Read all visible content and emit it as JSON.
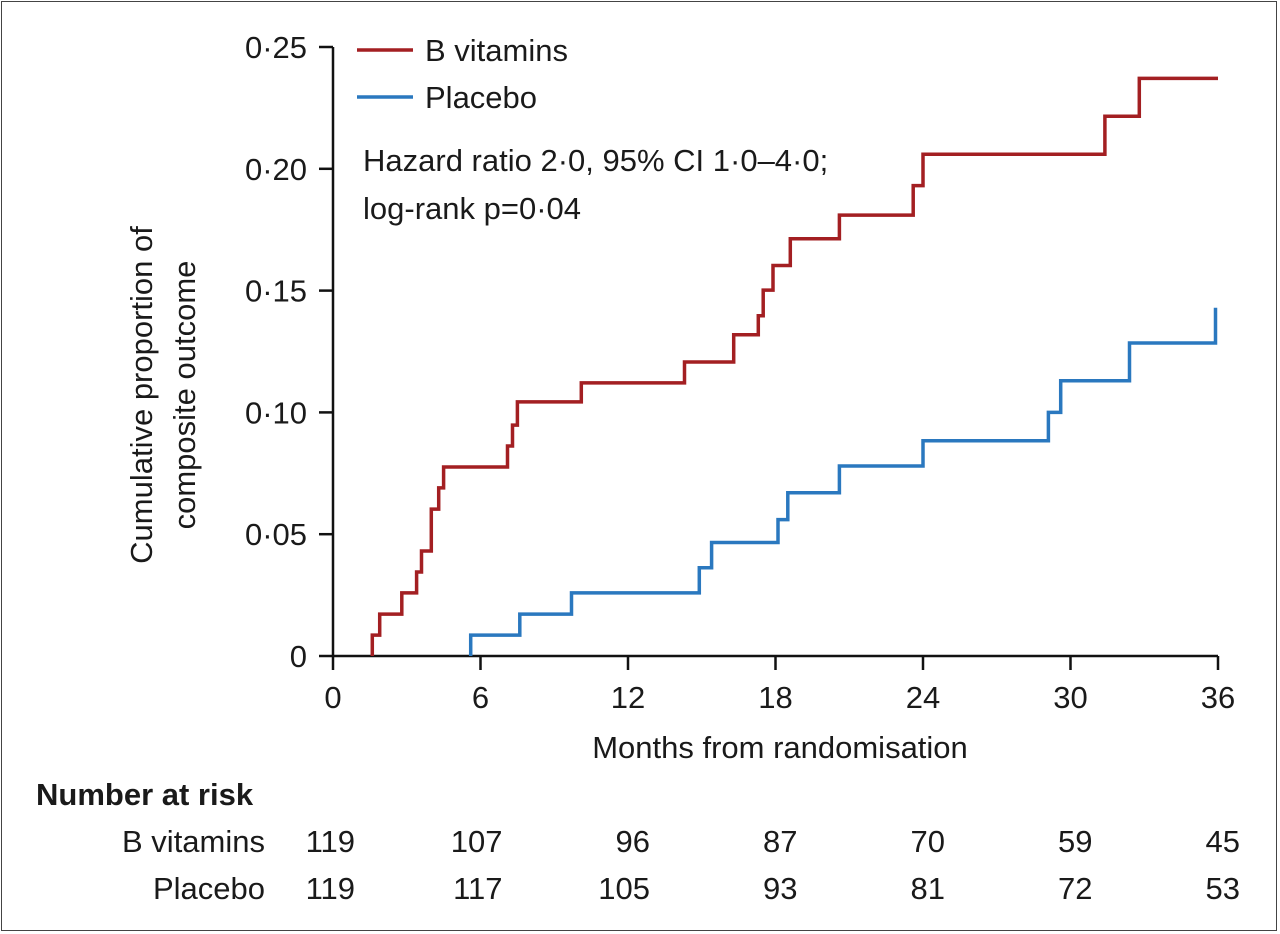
{
  "chart_data": {
    "type": "line",
    "step": true,
    "xlabel": "Months from randomisation",
    "ylabel_line1": "Cumulative proportion of",
    "ylabel_line2": "composite outcome",
    "xlim": [
      0,
      36
    ],
    "ylim": [
      0,
      0.25
    ],
    "x_ticks": [
      0,
      6,
      12,
      18,
      24,
      30,
      36
    ],
    "x_tick_labels": [
      "0",
      "6",
      "12",
      "18",
      "24",
      "30",
      "36"
    ],
    "y_ticks": [
      0,
      0.05,
      0.1,
      0.15,
      0.2,
      0.25
    ],
    "y_tick_labels": [
      "0",
      "0·05",
      "0·10",
      "0·15",
      "0·20",
      "0·25"
    ],
    "annotation_line1": "Hazard ratio 2·0, 95% CI 1·0–4·0;",
    "annotation_line2": "log-rank p=0·04",
    "legend_position": "top-left",
    "grid": false,
    "series": [
      {
        "name": "B vitamins",
        "color": "#a31f22",
        "x": [
          1.6,
          1.6,
          1.9,
          2.8,
          3.4,
          3.6,
          4.0,
          4.2,
          4.3,
          4.5,
          7.1,
          7.3,
          7.5,
          10.1,
          14.3,
          16.3,
          17.3,
          17.5,
          17.9,
          18.6,
          20.6,
          23.6,
          24.0,
          31.4,
          32.8,
          36.0
        ],
        "y": [
          0.0,
          0.0086,
          0.0172,
          0.0259,
          0.0345,
          0.0431,
          0.0603,
          0.0603,
          0.069,
          0.0776,
          0.0862,
          0.0948,
          0.1043,
          0.1121,
          0.1207,
          0.1319,
          0.1397,
          0.1502,
          0.1603,
          0.1713,
          0.181,
          0.1931,
          0.206,
          0.2216,
          0.2371,
          0.2371
        ]
      },
      {
        "name": "Placebo",
        "color": "#2a78bf",
        "x": [
          5.6,
          5.6,
          7.6,
          9.7,
          14.9,
          15.4,
          18.1,
          18.5,
          20.6,
          24.0,
          29.1,
          29.6,
          32.4,
          35.9,
          35.9
        ],
        "y": [
          0.0,
          0.0086,
          0.0172,
          0.0259,
          0.0362,
          0.0466,
          0.056,
          0.067,
          0.078,
          0.0884,
          0.1,
          0.113,
          0.1285,
          0.1285,
          0.143
        ]
      }
    ]
  },
  "risk_table": {
    "header": "Number at risk",
    "rows": [
      {
        "label": "B vitamins",
        "values": [
          "119",
          "107",
          "96",
          "87",
          "70",
          "59",
          "45"
        ]
      },
      {
        "label": "Placebo",
        "values": [
          "119",
          "117",
          "105",
          "93",
          "81",
          "72",
          "53"
        ]
      }
    ]
  }
}
